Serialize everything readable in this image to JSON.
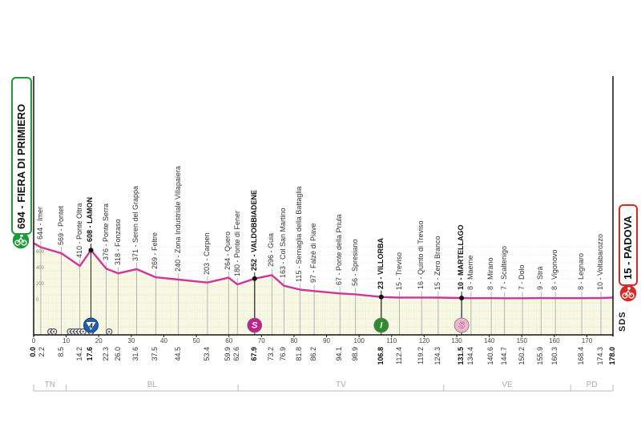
{
  "chart_data": {
    "type": "area",
    "title": "",
    "xlabel": "",
    "ylabel": "",
    "xlim": [
      0,
      178
    ],
    "ylim": [
      0,
      694
    ],
    "x_ticks": [
      0,
      10,
      20,
      30,
      40,
      50,
      60,
      70,
      80,
      90,
      100,
      110,
      120,
      130,
      140,
      150,
      160,
      170
    ],
    "y_ticks": [
      0,
      200,
      400,
      600
    ],
    "grid": true,
    "line_color": "#d1359b",
    "fill_color": "#f6f8e4",
    "start": {
      "km": 0.0,
      "alt": 694,
      "name": "FIERA DI PRIMIERO",
      "color": "#1f9a3a"
    },
    "finish": {
      "km": 178.0,
      "alt": 15,
      "name": "PADOVA",
      "color": "#d42a2a"
    },
    "points": [
      {
        "km": 0.0,
        "alt": 694,
        "name": "",
        "bold": true
      },
      {
        "km": 2.2,
        "alt": 644,
        "name": "Imer",
        "bold": false
      },
      {
        "km": 8.5,
        "alt": 569,
        "name": "Pontet",
        "bold": false
      },
      {
        "km": 14.2,
        "alt": 410,
        "name": "Ponte Oltra",
        "bold": false
      },
      {
        "km": 17.6,
        "alt": 608,
        "name": "LAMON",
        "bold": true
      },
      {
        "km": 22.3,
        "alt": 376,
        "name": "Ponte Serra",
        "bold": false
      },
      {
        "km": 26.0,
        "alt": 318,
        "name": "Fonzaso",
        "bold": false
      },
      {
        "km": 31.6,
        "alt": 371,
        "name": "Seren del Grappa",
        "bold": false
      },
      {
        "km": 37.5,
        "alt": 269,
        "name": "Feltre",
        "bold": false
      },
      {
        "km": 44.5,
        "alt": 240,
        "name": "Zona Industriale Villapaiera",
        "bold": false
      },
      {
        "km": 53.4,
        "alt": 203,
        "name": "Carpen",
        "bold": false
      },
      {
        "km": 59.9,
        "alt": 264,
        "name": "Quero",
        "bold": false
      },
      {
        "km": 62.6,
        "alt": 180,
        "name": "Ponte di Fener",
        "bold": false
      },
      {
        "km": 67.9,
        "alt": 252,
        "name": "VALDOBBIADENE",
        "bold": true
      },
      {
        "km": 73.2,
        "alt": 296,
        "name": "Guia",
        "bold": false
      },
      {
        "km": 76.9,
        "alt": 163,
        "name": "Col San Martino",
        "bold": false
      },
      {
        "km": 81.8,
        "alt": 115,
        "name": "Sernaglia della Battaglia",
        "bold": false
      },
      {
        "km": 86.2,
        "alt": 97,
        "name": "Falzè di Piave",
        "bold": false
      },
      {
        "km": 94.1,
        "alt": 67,
        "name": "Ponte della Priula",
        "bold": false
      },
      {
        "km": 98.9,
        "alt": 56,
        "name": "Spresiano",
        "bold": false
      },
      {
        "km": 106.8,
        "alt": 23,
        "name": "VILLORBA",
        "bold": true
      },
      {
        "km": 112.4,
        "alt": 15,
        "name": "Treviso",
        "bold": false
      },
      {
        "km": 119.2,
        "alt": 16,
        "name": "Quinto di Treviso",
        "bold": false
      },
      {
        "km": 124.3,
        "alt": 15,
        "name": "Zero Branco",
        "bold": false
      },
      {
        "km": 131.5,
        "alt": 10,
        "name": "MARTELLAGO",
        "bold": true
      },
      {
        "km": 134.4,
        "alt": 8,
        "name": "Maerne",
        "bold": false
      },
      {
        "km": 140.6,
        "alt": 8,
        "name": "Mirano",
        "bold": false
      },
      {
        "km": 144.7,
        "alt": 7,
        "name": "Scaltenigo",
        "bold": false
      },
      {
        "km": 150.2,
        "alt": 7,
        "name": "Dolo",
        "bold": false
      },
      {
        "km": 155.9,
        "alt": 9,
        "name": "Strà",
        "bold": false
      },
      {
        "km": 160.3,
        "alt": 8,
        "name": "Vigonovo",
        "bold": false
      },
      {
        "km": 168.4,
        "alt": 8,
        "name": "Legnaro",
        "bold": false
      },
      {
        "km": 174.3,
        "alt": 10,
        "name": "Voltabarozzo",
        "bold": false
      },
      {
        "km": 178.0,
        "alt": 15,
        "name": "",
        "bold": true
      }
    ],
    "markers": [
      {
        "km": 17.6,
        "type": "gpm",
        "label": "4",
        "color": "#1f5fae",
        "icon": "mountain-category-icon"
      },
      {
        "km": 67.9,
        "type": "sprint",
        "label": "S",
        "color": "#c2208e",
        "icon": "sprint-icon"
      },
      {
        "km": 106.8,
        "type": "intermediate",
        "label": "I",
        "color": "#2e8b2e",
        "icon": "intermediate-sprint-icon"
      },
      {
        "km": 131.5,
        "type": "sprint",
        "label": "S",
        "color": "#f0b6cf",
        "icon": "sprint-icon"
      }
    ],
    "small_markers_km": [
      5.2,
      6.2,
      11.2,
      12.2,
      13.2,
      14.2,
      15.2,
      17.6,
      23.2
    ],
    "regions": [
      {
        "label": "TN",
        "from": 0,
        "to": 10
      },
      {
        "label": "BL",
        "from": 10,
        "to": 62.8
      },
      {
        "label": "TV",
        "from": 62.8,
        "to": 126
      },
      {
        "label": "VE",
        "from": 126,
        "to": 165
      },
      {
        "label": "PD",
        "from": 165,
        "to": 178
      }
    ]
  },
  "logo": "SDS"
}
